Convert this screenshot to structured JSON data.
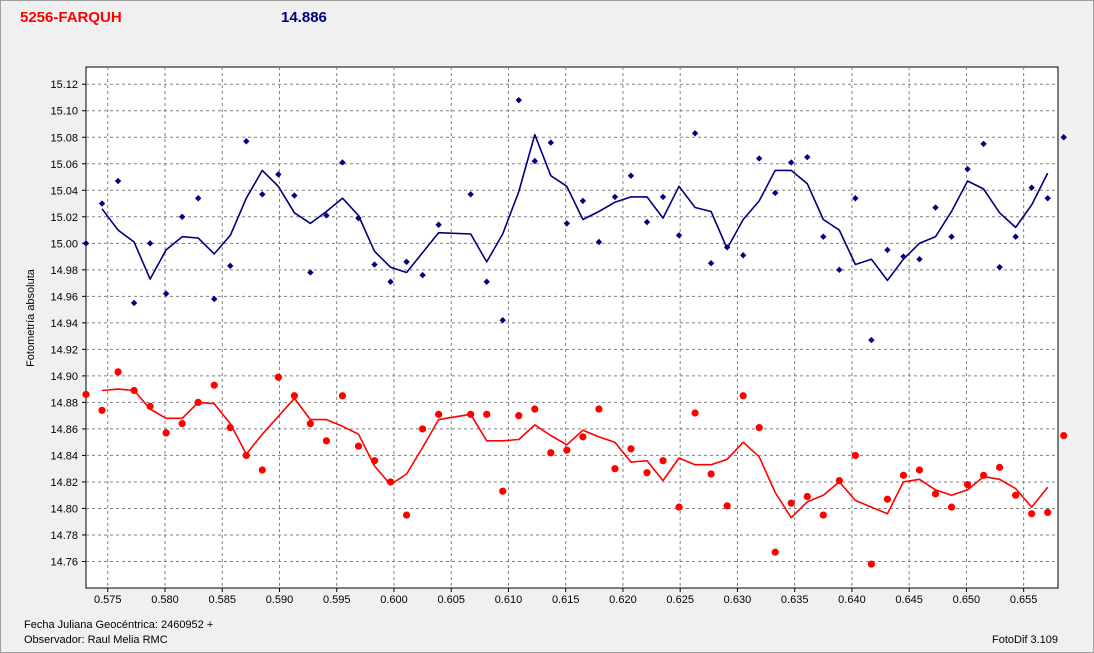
{
  "header": {
    "title": "5256-FARQUH",
    "value": "14.886"
  },
  "footer": {
    "date_label": "Fecha Juliana Geocéntrica: 2460952 +",
    "observer": "Observador: Raul Melia RMC",
    "version": "FotoDif 3.109"
  },
  "colors": {
    "red": "#ff0000",
    "blue": "#000080",
    "grid": "#808080"
  },
  "chart_data": {
    "type": "scatter",
    "title": "5256-FARQUH",
    "xlabel": "Fecha Juliana Geocéntrica: 2460952 +",
    "ylabel": "Fotometría absoluta",
    "xlim": [
      0.5731,
      0.658
    ],
    "ylim": [
      15.133,
      14.74
    ],
    "y_inverted": true,
    "grid": true,
    "x_ticks": [
      "0.575",
      "0.580",
      "0.585",
      "0.590",
      "0.595",
      "0.600",
      "0.605",
      "0.610",
      "0.615",
      "0.620",
      "0.625",
      "0.630",
      "0.635",
      "0.640",
      "0.645",
      "0.650",
      "0.655"
    ],
    "y_ticks": [
      "14.76",
      "14.78",
      "14.80",
      "14.82",
      "14.84",
      "14.86",
      "14.88",
      "14.90",
      "14.92",
      "14.94",
      "14.96",
      "14.98",
      "15.00",
      "15.02",
      "15.04",
      "15.06",
      "15.08",
      "15.10",
      "15.12"
    ],
    "series": [
      {
        "color": "#ff0000",
        "marker": "circle",
        "x": [
          0.5731,
          0.5745,
          0.5759,
          0.5773,
          0.5787,
          0.5801,
          0.5815,
          0.5829,
          0.5843,
          0.5857,
          0.5871,
          0.5885,
          0.5899,
          0.5913,
          0.5927,
          0.5941,
          0.5955,
          0.5969,
          0.5983,
          0.5997,
          0.6011,
          0.6025,
          0.6039,
          0.6067,
          0.6081,
          0.6095,
          0.6109,
          0.6123,
          0.6137,
          0.6151,
          0.6165,
          0.6179,
          0.6193,
          0.6207,
          0.6221,
          0.6235,
          0.6249,
          0.6263,
          0.6277,
          0.6291,
          0.6305,
          0.6319,
          0.6333,
          0.6347,
          0.6361,
          0.6375,
          0.6389,
          0.6403,
          0.6417,
          0.6431,
          0.6445,
          0.6459,
          0.6473,
          0.6487,
          0.6501,
          0.6515,
          0.6529,
          0.6543,
          0.6557,
          0.6571,
          0.6585
        ],
        "y": [
          14.886,
          14.874,
          14.903,
          14.889,
          14.877,
          14.857,
          14.864,
          14.88,
          14.893,
          14.861,
          14.84,
          14.829,
          14.899,
          14.885,
          14.864,
          14.851,
          14.885,
          14.847,
          14.836,
          14.82,
          14.795,
          14.86,
          14.871,
          14.871,
          14.871,
          14.813,
          14.87,
          14.875,
          14.842,
          14.844,
          14.854,
          14.875,
          14.83,
          14.845,
          14.827,
          14.836,
          14.801,
          14.872,
          14.826,
          14.802,
          14.885,
          14.861,
          14.767,
          14.804,
          14.809,
          14.795,
          14.821,
          14.84,
          14.758,
          14.807,
          14.825,
          14.829,
          14.811,
          14.801,
          14.818,
          14.825,
          14.831,
          14.81,
          14.796,
          14.797,
          14.855
        ]
      },
      {
        "color": "#ff0000",
        "marker": "line",
        "x": [
          0.5745,
          0.5759,
          0.5773,
          0.5787,
          0.5801,
          0.5815,
          0.5829,
          0.5843,
          0.5857,
          0.5871,
          0.5885,
          0.5913,
          0.5927,
          0.5941,
          0.5955,
          0.5969,
          0.5983,
          0.5997,
          0.6011,
          0.6025,
          0.6039,
          0.6067,
          0.6081,
          0.6095,
          0.6109,
          0.6123,
          0.6137,
          0.6151,
          0.6165,
          0.6179,
          0.6193,
          0.6207,
          0.6221,
          0.6235,
          0.6249,
          0.6263,
          0.6277,
          0.6291,
          0.6305,
          0.6319,
          0.6333,
          0.6347,
          0.6361,
          0.6375,
          0.6389,
          0.6403,
          0.6417,
          0.6431,
          0.6445,
          0.6459,
          0.6473,
          0.6487,
          0.6501,
          0.6515,
          0.6529,
          0.6543,
          0.6557,
          0.6571
        ],
        "y": [
          14.889,
          14.89,
          14.889,
          14.875,
          14.868,
          14.868,
          14.88,
          14.879,
          14.864,
          14.841,
          14.856,
          14.883,
          14.867,
          14.867,
          14.862,
          14.856,
          14.832,
          14.818,
          14.826,
          14.846,
          14.867,
          14.871,
          14.851,
          14.851,
          14.852,
          14.863,
          14.855,
          14.848,
          14.859,
          14.854,
          14.85,
          14.835,
          14.836,
          14.821,
          14.838,
          14.833,
          14.833,
          14.837,
          14.85,
          14.839,
          14.812,
          14.793,
          14.805,
          14.81,
          14.82,
          14.806,
          14.801,
          14.796,
          14.82,
          14.822,
          14.814,
          14.81,
          14.814,
          14.824,
          14.822,
          14.815,
          14.801,
          14.816
        ]
      },
      {
        "color": "#000080",
        "marker": "diamond",
        "x": [
          0.5731,
          0.5745,
          0.5759,
          0.5773,
          0.5787,
          0.5801,
          0.5815,
          0.5829,
          0.5843,
          0.5857,
          0.5871,
          0.5885,
          0.5899,
          0.5913,
          0.5927,
          0.5941,
          0.5955,
          0.5969,
          0.5983,
          0.5997,
          0.6011,
          0.6025,
          0.6039,
          0.6067,
          0.6081,
          0.6095,
          0.6109,
          0.6123,
          0.6137,
          0.6151,
          0.6165,
          0.6179,
          0.6193,
          0.6207,
          0.6221,
          0.6235,
          0.6249,
          0.6263,
          0.6277,
          0.6291,
          0.6305,
          0.6319,
          0.6333,
          0.6347,
          0.6361,
          0.6375,
          0.6389,
          0.6403,
          0.6417,
          0.6431,
          0.6445,
          0.6459,
          0.6473,
          0.6487,
          0.6501,
          0.6515,
          0.6529,
          0.6543,
          0.6557,
          0.6571,
          0.6585
        ],
        "y": [
          15.0,
          15.03,
          15.047,
          14.955,
          15.0,
          14.962,
          15.02,
          15.034,
          14.958,
          14.983,
          15.077,
          15.037,
          15.052,
          15.036,
          14.978,
          15.021,
          15.061,
          15.019,
          14.984,
          14.971,
          14.986,
          14.976,
          15.014,
          15.037,
          14.971,
          14.942,
          15.108,
          15.062,
          15.076,
          15.015,
          15.032,
          15.001,
          15.035,
          15.051,
          15.016,
          15.035,
          15.006,
          15.083,
          14.985,
          14.997,
          14.991,
          15.064,
          15.038,
          15.061,
          15.065,
          15.005,
          14.98,
          15.034,
          14.927,
          14.995,
          14.99,
          14.988,
          15.027,
          15.005,
          15.056,
          15.075,
          14.982,
          15.005,
          15.042,
          15.034,
          15.08
        ]
      },
      {
        "color": "#000080",
        "marker": "line",
        "x": [
          0.5745,
          0.5759,
          0.5773,
          0.5787,
          0.5801,
          0.5815,
          0.5829,
          0.5843,
          0.5857,
          0.5871,
          0.5885,
          0.5899,
          0.5913,
          0.5927,
          0.5941,
          0.5955,
          0.5969,
          0.5983,
          0.5997,
          0.6011,
          0.6025,
          0.6039,
          0.6067,
          0.6081,
          0.6095,
          0.6109,
          0.6123,
          0.6137,
          0.6151,
          0.6165,
          0.6179,
          0.6193,
          0.6207,
          0.6221,
          0.6235,
          0.6249,
          0.6263,
          0.6277,
          0.6291,
          0.6305,
          0.6319,
          0.6333,
          0.6347,
          0.6361,
          0.6375,
          0.6389,
          0.6403,
          0.6417,
          0.6431,
          0.6445,
          0.6459,
          0.6473,
          0.6487,
          0.6501,
          0.6515,
          0.6529,
          0.6543,
          0.6557,
          0.6571
        ],
        "y": [
          15.026,
          15.01,
          15.001,
          14.973,
          14.995,
          15.005,
          15.004,
          14.992,
          15.006,
          15.034,
          15.055,
          15.043,
          15.023,
          15.015,
          15.024,
          15.034,
          15.021,
          14.994,
          14.982,
          14.978,
          14.993,
          15.008,
          15.007,
          14.986,
          15.007,
          15.039,
          15.082,
          15.051,
          15.043,
          15.018,
          15.024,
          15.031,
          15.035,
          15.035,
          15.019,
          15.043,
          15.027,
          15.024,
          14.996,
          15.018,
          15.032,
          15.055,
          15.055,
          15.045,
          15.018,
          15.01,
          14.984,
          14.988,
          14.972,
          14.988,
          15.0,
          15.005,
          15.024,
          15.047,
          15.041,
          15.023,
          15.012,
          15.029,
          15.053
        ]
      }
    ]
  }
}
